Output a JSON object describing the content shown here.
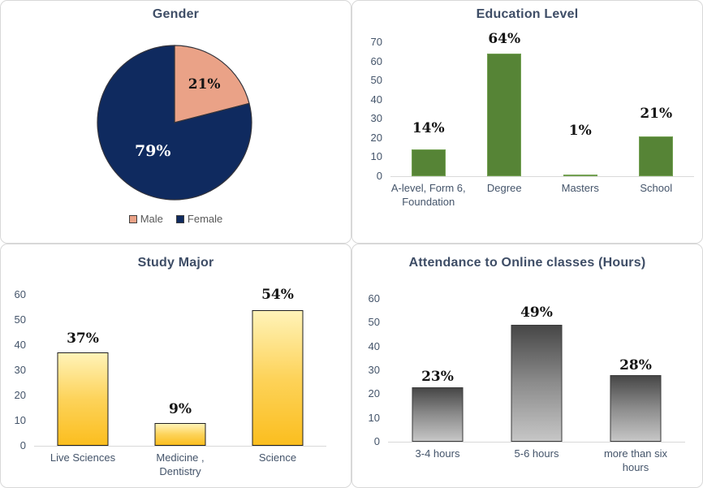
{
  "colors": {
    "title_text": "#3E4D66",
    "axis_text": "#44546A",
    "legend_text": "#595959",
    "axis_line": "#D9D9D9",
    "card_border": "#D8D8D8",
    "data_label_text": "#141414"
  },
  "chart_data": [
    {
      "id": "gender",
      "type": "pie",
      "title": "Gender",
      "slices": [
        {
          "label": "Male",
          "value": 21,
          "display": "21%",
          "color": "#EAA287",
          "label_color": "#141414"
        },
        {
          "label": "Female",
          "value": 79,
          "display": "79%",
          "color": "#0F2A5F",
          "label_color": "#FFFFFF"
        }
      ],
      "slice_outline": "#33333B",
      "swatch_outline": "#3F3F3F",
      "legend_position": "bottom"
    },
    {
      "id": "education",
      "type": "bar",
      "title": "Education Level",
      "categories": [
        "A-level, Form 6, Foundation",
        "Degree",
        "Masters",
        "School"
      ],
      "values": [
        14,
        64,
        1,
        21
      ],
      "data_labels": [
        "14%",
        "64%",
        "1%",
        "21%"
      ],
      "ylim": [
        0,
        70
      ],
      "ytick_step": 10,
      "ytick_labels": [
        "0",
        "10",
        "20",
        "30",
        "40",
        "50",
        "60",
        "70"
      ],
      "bar_fill": "#568436",
      "bar_border": "#73A152",
      "grid": false,
      "legend_position": "none"
    },
    {
      "id": "study-major",
      "type": "bar",
      "title": "Study Major",
      "categories": [
        "Live Sciences",
        "Medicine , Dentistry",
        "Science"
      ],
      "values": [
        37,
        9,
        54
      ],
      "data_labels": [
        "37%",
        "9%",
        "54%"
      ],
      "ylim": [
        0,
        60
      ],
      "ytick_step": 10,
      "ytick_labels": [
        "0",
        "10",
        "20",
        "30",
        "40",
        "50",
        "60"
      ],
      "bar_gradient": [
        "#FFF3B8",
        "#FDD35A",
        "#FBBE1F"
      ],
      "bar_border": "#1F1F1F",
      "grid": false,
      "legend_position": "none"
    },
    {
      "id": "attendance",
      "type": "bar",
      "title": "Attendance to Online classes (Hours)",
      "categories": [
        "3-4 hours",
        "5-6 hours",
        "more than six hours"
      ],
      "values": [
        23,
        49,
        28
      ],
      "data_labels": [
        "23%",
        "49%",
        "28%"
      ],
      "ylim": [
        0,
        60
      ],
      "ytick_step": 10,
      "ytick_labels": [
        "0",
        "10",
        "20",
        "30",
        "40",
        "50",
        "60"
      ],
      "bar_gradient": [
        "#474747",
        "#8C8C8C",
        "#C6C6C6"
      ],
      "bar_border": "#3A3A3A",
      "grid": false,
      "legend_position": "none"
    }
  ]
}
